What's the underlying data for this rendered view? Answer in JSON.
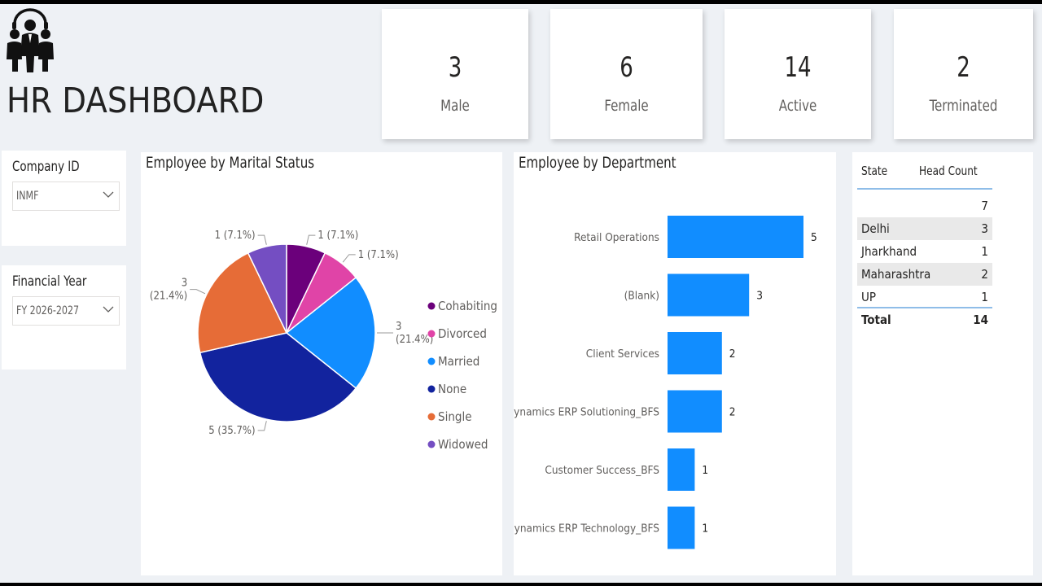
{
  "title": "HR DASHBOARD",
  "kpis": [
    {
      "value": "3",
      "label": "Male"
    },
    {
      "value": "6",
      "label": "Female"
    },
    {
      "value": "14",
      "label": "Active"
    },
    {
      "value": "2",
      "label": "Terminated"
    }
  ],
  "slicers": {
    "company": {
      "label": "Company ID",
      "value": "INMF"
    },
    "year": {
      "label": "Financial Year",
      "value": "FY 2026-2027"
    }
  },
  "marital": {
    "title": "Employee by Marital Status",
    "chart_data": {
      "type": "pie",
      "categories": [
        "Cohabiting",
        "Divorced",
        "Married",
        "None",
        "Single",
        "Widowed"
      ],
      "values": [
        1,
        1,
        3,
        5,
        3,
        1
      ],
      "labels": [
        "1 (7.1%)",
        "1 (7.1%)",
        "3 (21.4%)",
        "5 (35.7%)",
        "3 (21.4%)",
        "1 (7.1%)"
      ],
      "colors": [
        "#6b007b",
        "#e044a7",
        "#118dff",
        "#12239e",
        "#e66c37",
        "#744ec2"
      ],
      "legend": "right"
    }
  },
  "department": {
    "title": "Employee by Department",
    "chart_data": {
      "type": "bar",
      "orientation": "horizontal",
      "categories": [
        "Retail Operations",
        "(Blank)",
        "Client Services",
        "Dynamics ERP Solutioning_BFS",
        "Customer Success_BFS",
        "Dynamics ERP Technology_BFS"
      ],
      "values": [
        5,
        3,
        2,
        2,
        1,
        1
      ],
      "color": "#118dff"
    }
  },
  "state_table": {
    "headers": {
      "state": "State",
      "count": "Head Count"
    },
    "rows": [
      {
        "state": "",
        "count": "7"
      },
      {
        "state": "Delhi",
        "count": "3"
      },
      {
        "state": "Jharkhand",
        "count": "1"
      },
      {
        "state": "Maharashtra",
        "count": "2"
      },
      {
        "state": "UP",
        "count": "1"
      }
    ],
    "total": {
      "label": "Total",
      "value": "14"
    }
  }
}
